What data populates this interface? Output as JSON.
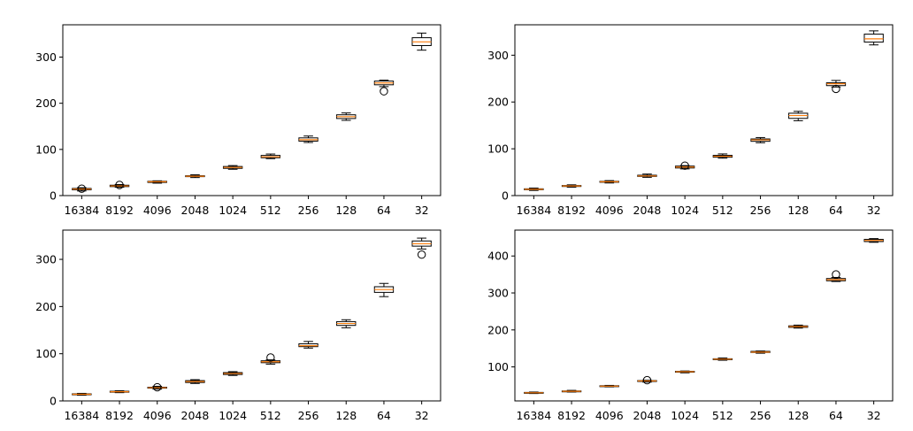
{
  "chart_data": [
    {
      "type": "box",
      "categories": [
        "16384",
        "8192",
        "4096",
        "2048",
        "1024",
        "512",
        "256",
        "128",
        "64",
        "32"
      ],
      "ylim": [
        0,
        370
      ],
      "yticks": [
        0,
        100,
        200,
        300
      ],
      "series": [
        {
          "values": [
            {
              "whislo": 10,
              "q1": 12.5,
              "med": 14,
              "q3": 15.5,
              "whishi": 17,
              "fliers": [
                15
              ]
            },
            {
              "whislo": 18,
              "q1": 19.5,
              "med": 21,
              "q3": 22.5,
              "whishi": 24,
              "fliers": [
                23
              ]
            },
            {
              "whislo": 27,
              "q1": 28.5,
              "med": 30,
              "q3": 31,
              "whishi": 32,
              "fliers": []
            },
            {
              "whislo": 39,
              "q1": 41,
              "med": 42,
              "q3": 43,
              "whishi": 45,
              "fliers": []
            },
            {
              "whislo": 57,
              "q1": 59,
              "med": 61,
              "q3": 63,
              "whishi": 65,
              "fliers": []
            },
            {
              "whislo": 80,
              "q1": 82,
              "med": 84,
              "q3": 87,
              "whishi": 90,
              "fliers": []
            },
            {
              "whislo": 115,
              "q1": 118,
              "med": 121,
              "q3": 125,
              "whishi": 129,
              "fliers": []
            },
            {
              "whislo": 163,
              "q1": 167,
              "med": 171,
              "q3": 175,
              "whishi": 179,
              "fliers": []
            },
            {
              "whislo": 236,
              "q1": 240,
              "med": 244,
              "q3": 248,
              "whishi": 250,
              "fliers": [
                226
              ]
            },
            {
              "whislo": 315,
              "q1": 325,
              "med": 333,
              "q3": 342,
              "whishi": 352,
              "fliers": []
            }
          ]
        }
      ]
    },
    {
      "type": "box",
      "categories": [
        "16384",
        "8192",
        "4096",
        "2048",
        "1024",
        "512",
        "256",
        "128",
        "64",
        "32"
      ],
      "ylim": [
        0,
        365
      ],
      "yticks": [
        0,
        100,
        200,
        300
      ],
      "series": [
        {
          "values": [
            {
              "whislo": 11,
              "q1": 12.5,
              "med": 13.5,
              "q3": 14.5,
              "whishi": 16,
              "fliers": []
            },
            {
              "whislo": 18,
              "q1": 19.5,
              "med": 20.5,
              "q3": 21.5,
              "whishi": 23,
              "fliers": []
            },
            {
              "whislo": 27,
              "q1": 28.5,
              "med": 29.5,
              "q3": 30.5,
              "whishi": 32,
              "fliers": []
            },
            {
              "whislo": 39,
              "q1": 41,
              "med": 42,
              "q3": 43.5,
              "whishi": 46,
              "fliers": []
            },
            {
              "whislo": 57,
              "q1": 59,
              "med": 61,
              "q3": 63,
              "whishi": 64,
              "fliers": [
                64
              ]
            },
            {
              "whislo": 80,
              "q1": 82,
              "med": 84,
              "q3": 86,
              "whishi": 89,
              "fliers": []
            },
            {
              "whislo": 113,
              "q1": 116,
              "med": 119,
              "q3": 121,
              "whishi": 124,
              "fliers": []
            },
            {
              "whislo": 160,
              "q1": 165,
              "med": 171,
              "q3": 176,
              "whishi": 180,
              "fliers": []
            },
            {
              "whislo": 232,
              "q1": 235,
              "med": 239,
              "q3": 241,
              "whishi": 246,
              "fliers": [
                228
              ]
            },
            {
              "whislo": 322,
              "q1": 328,
              "med": 335,
              "q3": 345,
              "whishi": 352,
              "fliers": []
            }
          ]
        }
      ]
    },
    {
      "type": "box",
      "categories": [
        "16384",
        "8192",
        "4096",
        "2048",
        "1024",
        "512",
        "256",
        "128",
        "64",
        "32"
      ],
      "ylim": [
        0,
        362
      ],
      "yticks": [
        0,
        100,
        200,
        300
      ],
      "series": [
        {
          "values": [
            {
              "whislo": 12,
              "q1": 13,
              "med": 14,
              "q3": 15,
              "whishi": 16,
              "fliers": []
            },
            {
              "whislo": 17.5,
              "q1": 18.5,
              "med": 19.5,
              "q3": 20.5,
              "whishi": 21.5,
              "fliers": []
            },
            {
              "whislo": 25,
              "q1": 27,
              "med": 28,
              "q3": 29,
              "whishi": 31,
              "fliers": [
                29
              ]
            },
            {
              "whislo": 37,
              "q1": 39,
              "med": 41,
              "q3": 43,
              "whishi": 45,
              "fliers": []
            },
            {
              "whislo": 54,
              "q1": 56,
              "med": 58,
              "q3": 60,
              "whishi": 62,
              "fliers": []
            },
            {
              "whislo": 78,
              "q1": 81,
              "med": 83,
              "q3": 85,
              "whishi": 87,
              "fliers": [
                92
              ]
            },
            {
              "whislo": 112,
              "q1": 115,
              "med": 117,
              "q3": 121,
              "whishi": 126,
              "fliers": []
            },
            {
              "whislo": 155,
              "q1": 160,
              "med": 164,
              "q3": 168,
              "whishi": 172,
              "fliers": []
            },
            {
              "whislo": 221,
              "q1": 230,
              "med": 236,
              "q3": 242,
              "whishi": 249,
              "fliers": []
            },
            {
              "whislo": 322,
              "q1": 328,
              "med": 333,
              "q3": 339,
              "whishi": 345,
              "fliers": [
                310
              ]
            }
          ]
        }
      ]
    },
    {
      "type": "box",
      "categories": [
        "16384",
        "8192",
        "4096",
        "2048",
        "1024",
        "512",
        "256",
        "128",
        "64",
        "32"
      ],
      "ylim": [
        8,
        470
      ],
      "yticks": [
        100,
        200,
        300,
        400
      ],
      "series": [
        {
          "values": [
            {
              "whislo": 28,
              "q1": 29,
              "med": 30,
              "q3": 31,
              "whishi": 32,
              "fliers": []
            },
            {
              "whislo": 32,
              "q1": 33,
              "med": 34,
              "q3": 35,
              "whishi": 36.5,
              "fliers": []
            },
            {
              "whislo": 46,
              "q1": 47,
              "med": 48,
              "q3": 49,
              "whishi": 50,
              "fliers": []
            },
            {
              "whislo": 59,
              "q1": 61,
              "med": 62,
              "q3": 63,
              "whishi": 64,
              "fliers": [
                64
              ]
            },
            {
              "whislo": 84,
              "q1": 86,
              "med": 87,
              "q3": 88,
              "whishi": 89,
              "fliers": []
            },
            {
              "whislo": 118,
              "q1": 120,
              "med": 121,
              "q3": 122,
              "whishi": 124,
              "fliers": []
            },
            {
              "whislo": 137,
              "q1": 139,
              "med": 140,
              "q3": 142,
              "whishi": 143,
              "fliers": []
            },
            {
              "whislo": 205,
              "q1": 207,
              "med": 209,
              "q3": 211,
              "whishi": 213,
              "fliers": []
            },
            {
              "whislo": 331,
              "q1": 333,
              "med": 336,
              "q3": 339,
              "whishi": 342,
              "fliers": [
                350
              ]
            },
            {
              "whislo": 437,
              "q1": 439,
              "med": 442,
              "q3": 445,
              "whishi": 447,
              "fliers": []
            }
          ]
        }
      ]
    }
  ],
  "colors": {
    "median": "#ff7f0e",
    "box_edge": "#000000",
    "axes": "#000000"
  }
}
